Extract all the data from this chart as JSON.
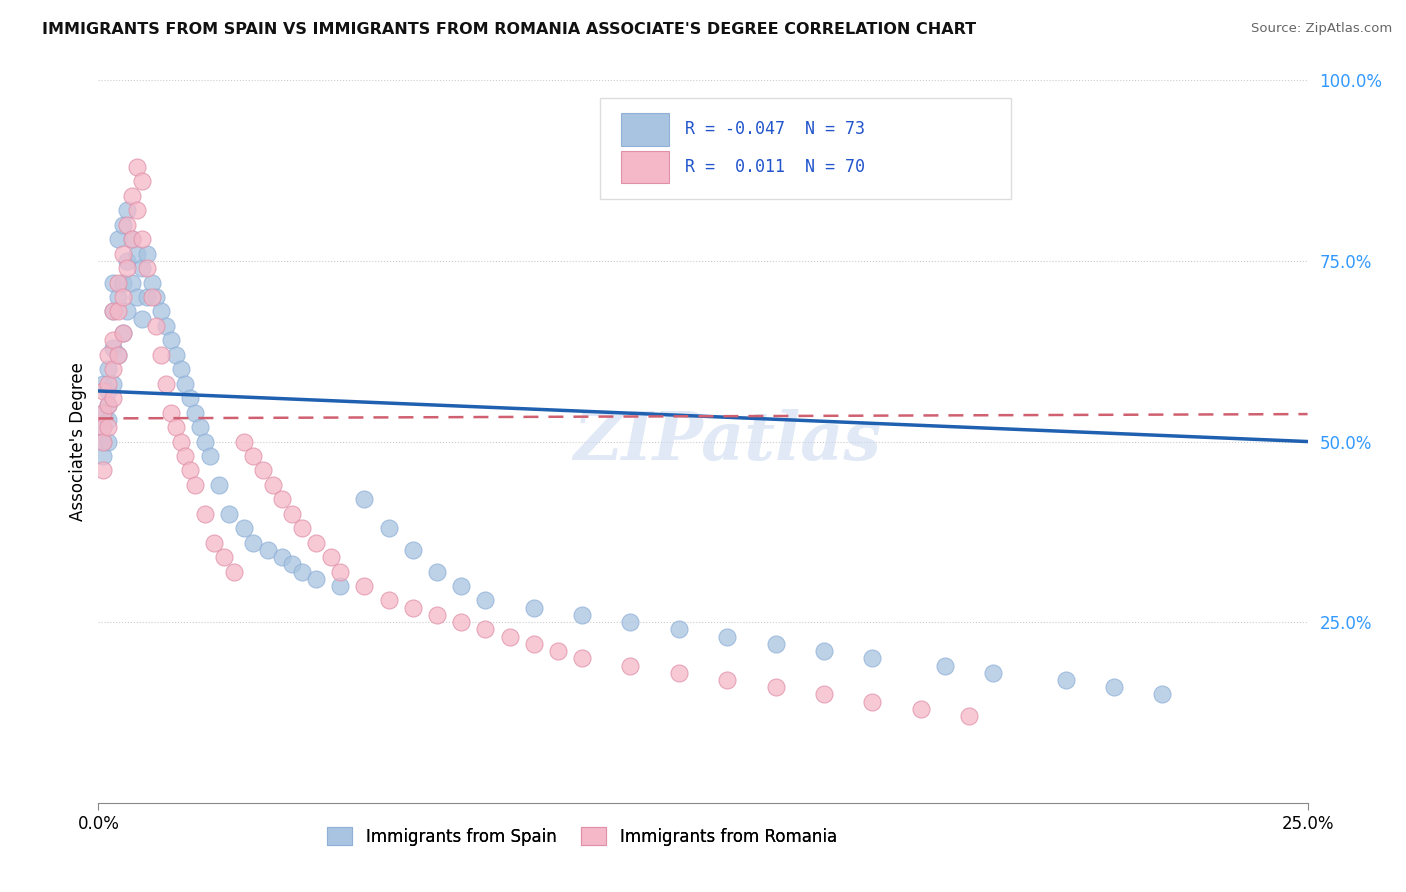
{
  "title": "IMMIGRANTS FROM SPAIN VS IMMIGRANTS FROM ROMANIA ASSOCIATE'S DEGREE CORRELATION CHART",
  "source": "Source: ZipAtlas.com",
  "ylabel": "Associate's Degree",
  "legend_1_label": "Immigrants from Spain",
  "legend_2_label": "Immigrants from Romania",
  "r1": -0.047,
  "n1": 73,
  "r2": 0.011,
  "n2": 70,
  "color_spain": "#a8c4e0",
  "color_romania": "#f4b8c8",
  "line_color_spain": "#2060b0",
  "line_color_romania": "#d06070",
  "watermark": "ZIPatlas",
  "xlim": [
    0.0,
    0.25
  ],
  "ylim": [
    0.0,
    1.0
  ],
  "spain_x": [
    0.001,
    0.001,
    0.001,
    0.001,
    0.001,
    0.002,
    0.002,
    0.002,
    0.002,
    0.002,
    0.003,
    0.003,
    0.003,
    0.003,
    0.004,
    0.004,
    0.004,
    0.005,
    0.005,
    0.005,
    0.006,
    0.006,
    0.006,
    0.007,
    0.007,
    0.008,
    0.008,
    0.009,
    0.009,
    0.01,
    0.01,
    0.011,
    0.012,
    0.013,
    0.014,
    0.015,
    0.016,
    0.017,
    0.018,
    0.019,
    0.02,
    0.021,
    0.022,
    0.023,
    0.025,
    0.027,
    0.03,
    0.032,
    0.035,
    0.038,
    0.04,
    0.042,
    0.045,
    0.05,
    0.055,
    0.06,
    0.065,
    0.07,
    0.075,
    0.08,
    0.09,
    0.1,
    0.11,
    0.12,
    0.13,
    0.14,
    0.15,
    0.16,
    0.175,
    0.185,
    0.2,
    0.21,
    0.22
  ],
  "spain_y": [
    0.58,
    0.54,
    0.52,
    0.5,
    0.48,
    0.6,
    0.57,
    0.55,
    0.53,
    0.5,
    0.72,
    0.68,
    0.63,
    0.58,
    0.78,
    0.7,
    0.62,
    0.8,
    0.72,
    0.65,
    0.82,
    0.75,
    0.68,
    0.78,
    0.72,
    0.76,
    0.7,
    0.74,
    0.67,
    0.76,
    0.7,
    0.72,
    0.7,
    0.68,
    0.66,
    0.64,
    0.62,
    0.6,
    0.58,
    0.56,
    0.54,
    0.52,
    0.5,
    0.48,
    0.44,
    0.4,
    0.38,
    0.36,
    0.35,
    0.34,
    0.33,
    0.32,
    0.31,
    0.3,
    0.42,
    0.38,
    0.35,
    0.32,
    0.3,
    0.28,
    0.27,
    0.26,
    0.25,
    0.24,
    0.23,
    0.22,
    0.21,
    0.2,
    0.19,
    0.18,
    0.17,
    0.16,
    0.15
  ],
  "romania_x": [
    0.001,
    0.001,
    0.001,
    0.001,
    0.001,
    0.002,
    0.002,
    0.002,
    0.002,
    0.003,
    0.003,
    0.003,
    0.003,
    0.004,
    0.004,
    0.004,
    0.005,
    0.005,
    0.005,
    0.006,
    0.006,
    0.007,
    0.007,
    0.008,
    0.008,
    0.009,
    0.009,
    0.01,
    0.011,
    0.012,
    0.013,
    0.014,
    0.015,
    0.016,
    0.017,
    0.018,
    0.019,
    0.02,
    0.022,
    0.024,
    0.026,
    0.028,
    0.03,
    0.032,
    0.034,
    0.036,
    0.038,
    0.04,
    0.042,
    0.045,
    0.048,
    0.05,
    0.055,
    0.06,
    0.065,
    0.07,
    0.075,
    0.08,
    0.085,
    0.09,
    0.095,
    0.1,
    0.11,
    0.12,
    0.13,
    0.14,
    0.15,
    0.16,
    0.17,
    0.18
  ],
  "romania_y": [
    0.57,
    0.54,
    0.52,
    0.5,
    0.46,
    0.62,
    0.58,
    0.55,
    0.52,
    0.68,
    0.64,
    0.6,
    0.56,
    0.72,
    0.68,
    0.62,
    0.76,
    0.7,
    0.65,
    0.8,
    0.74,
    0.84,
    0.78,
    0.88,
    0.82,
    0.86,
    0.78,
    0.74,
    0.7,
    0.66,
    0.62,
    0.58,
    0.54,
    0.52,
    0.5,
    0.48,
    0.46,
    0.44,
    0.4,
    0.36,
    0.34,
    0.32,
    0.5,
    0.48,
    0.46,
    0.44,
    0.42,
    0.4,
    0.38,
    0.36,
    0.34,
    0.32,
    0.3,
    0.28,
    0.27,
    0.26,
    0.25,
    0.24,
    0.23,
    0.22,
    0.21,
    0.2,
    0.19,
    0.18,
    0.17,
    0.16,
    0.15,
    0.14,
    0.13,
    0.12
  ]
}
